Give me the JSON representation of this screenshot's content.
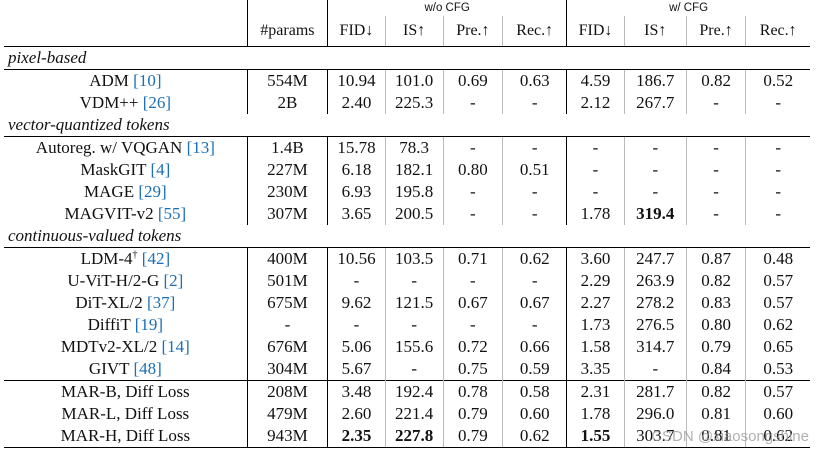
{
  "header": {
    "group_wo": "w/o CFG",
    "group_w": "w/ CFG",
    "columns": [
      "#params",
      "FID↓",
      "IS↑",
      "Pre.↑",
      "Rec.↑",
      "FID↓",
      "IS↑",
      "Pre.↑",
      "Rec.↑"
    ]
  },
  "sections": [
    {
      "title": "pixel-based",
      "rows": [
        {
          "method": "ADM",
          "cite": "[10]",
          "sup": "",
          "params": "554M",
          "vals": [
            "10.94",
            "101.0",
            "0.69",
            "0.63",
            "4.59",
            "186.7",
            "0.82",
            "0.52"
          ]
        },
        {
          "method": "VDM++",
          "cite": "[26]",
          "sup": "",
          "params": "2B",
          "vals": [
            "2.40",
            "225.3",
            "-",
            "-",
            "2.12",
            "267.7",
            "-",
            "-"
          ]
        }
      ]
    },
    {
      "title": "vector-quantized tokens",
      "rows": [
        {
          "method": "Autoreg. w/ VQGAN",
          "cite": "[13]",
          "sup": "",
          "params": "1.4B",
          "vals": [
            "15.78",
            "78.3",
            "-",
            "-",
            "-",
            "-",
            "-",
            "-"
          ]
        },
        {
          "method": "MaskGIT",
          "cite": "[4]",
          "sup": "",
          "params": "227M",
          "vals": [
            "6.18",
            "182.1",
            "0.80",
            "0.51",
            "-",
            "-",
            "-",
            "-"
          ]
        },
        {
          "method": "MAGE",
          "cite": "[29]",
          "sup": "",
          "params": "230M",
          "vals": [
            "6.93",
            "195.8",
            "-",
            "-",
            "-",
            "-",
            "-",
            "-"
          ]
        },
        {
          "method": "MAGVIT-v2",
          "cite": "[55]",
          "sup": "",
          "params": "307M",
          "vals": [
            "3.65",
            "200.5",
            "-",
            "-",
            "1.78",
            "319.4",
            "-",
            "-"
          ]
        }
      ]
    },
    {
      "title": "continuous-valued tokens",
      "rows": [
        {
          "method": "LDM-4",
          "cite": "[42]",
          "sup": "†",
          "params": "400M",
          "vals": [
            "10.56",
            "103.5",
            "0.71",
            "0.62",
            "3.60",
            "247.7",
            "0.87",
            "0.48"
          ]
        },
        {
          "method": "U-ViT-H/2-G",
          "cite": "[2]",
          "sup": "",
          "params": "501M",
          "vals": [
            "-",
            "-",
            "-",
            "-",
            "2.29",
            "263.9",
            "0.82",
            "0.57"
          ]
        },
        {
          "method": "DiT-XL/2",
          "cite": "[37]",
          "sup": "",
          "params": "675M",
          "vals": [
            "9.62",
            "121.5",
            "0.67",
            "0.67",
            "2.27",
            "278.2",
            "0.83",
            "0.57"
          ]
        },
        {
          "method": "DiffiT",
          "cite": "[19]",
          "sup": "",
          "params": "-",
          "vals": [
            "-",
            "-",
            "-",
            "-",
            "1.73",
            "276.5",
            "0.80",
            "0.62"
          ]
        },
        {
          "method": "MDTv2-XL/2",
          "cite": "[14]",
          "sup": "",
          "params": "676M",
          "vals": [
            "5.06",
            "155.6",
            "0.72",
            "0.66",
            "1.58",
            "314.7",
            "0.79",
            "0.65"
          ]
        },
        {
          "method": "GIVT",
          "cite": "[48]",
          "sup": "",
          "params": "304M",
          "vals": [
            "5.67",
            "-",
            "0.75",
            "0.59",
            "3.35",
            "-",
            "0.84",
            "0.53"
          ]
        }
      ]
    },
    {
      "title": "",
      "rows": [
        {
          "method": "MAR-B, Diff Loss",
          "cite": "",
          "sup": "",
          "params": "208M",
          "vals": [
            "3.48",
            "192.4",
            "0.78",
            "0.58",
            "2.31",
            "281.7",
            "0.82",
            "0.57"
          ]
        },
        {
          "method": "MAR-L, Diff Loss",
          "cite": "",
          "sup": "",
          "params": "479M",
          "vals": [
            "2.60",
            "221.4",
            "0.79",
            "0.60",
            "1.78",
            "296.0",
            "0.81",
            "0.60"
          ]
        },
        {
          "method": "MAR-H, Diff Loss",
          "cite": "",
          "sup": "",
          "params": "943M",
          "vals": [
            "2.35",
            "227.8",
            "0.79",
            "0.62",
            "1.55",
            "303.7",
            "0.81",
            "0.62"
          ]
        }
      ]
    }
  ],
  "bold_cells": [
    {
      "section": 1,
      "row": 3,
      "col": 5
    },
    {
      "section": 3,
      "row": 2,
      "col": 0
    },
    {
      "section": 3,
      "row": 2,
      "col": 1
    },
    {
      "section": 3,
      "row": 2,
      "col": 4
    }
  ],
  "watermark": "CSDN @xiaosongshine",
  "colors": {
    "citation": "#1a6fb5",
    "text": "#111111"
  }
}
